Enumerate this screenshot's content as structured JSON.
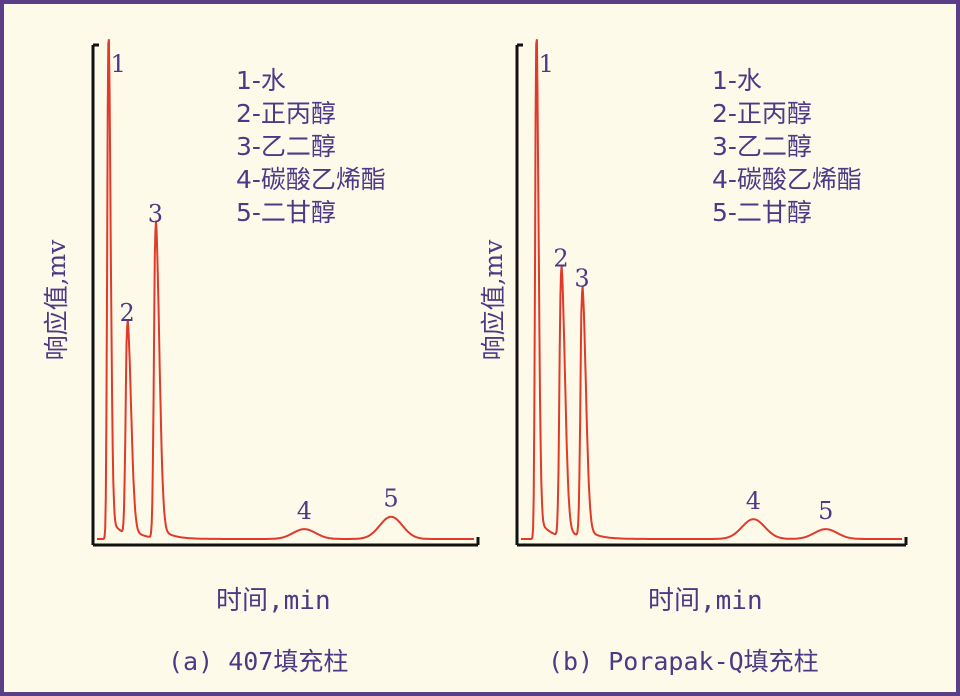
{
  "chart_data": [
    {
      "type": "line",
      "caption": "(a) 407填充柱",
      "xlabel": "时间,min",
      "ylabel": "响应值,mv",
      "legend": [
        "1-水",
        "2-正丙醇",
        "3-乙二醇",
        "4-碳酸乙烯酯",
        "5-二甘醇"
      ],
      "peaks": [
        {
          "label": "1",
          "x": 0.03,
          "height": 1.0
        },
        {
          "label": "2",
          "x": 0.08,
          "height": 0.42
        },
        {
          "label": "3",
          "x": 0.155,
          "height": 0.62
        },
        {
          "label": "4",
          "x": 0.55,
          "height": 0.02
        },
        {
          "label": "5",
          "x": 0.78,
          "height": 0.045
        }
      ],
      "color": "#e03a2a"
    },
    {
      "type": "line",
      "caption": "(b) Porapak-Q填充柱",
      "xlabel": "时间,min",
      "ylabel": "响应值,mv",
      "legend": [
        "1-水",
        "2-正丙醇",
        "3-乙二醇",
        "4-碳酸乙烯酯",
        "5-二甘醇"
      ],
      "peaks": [
        {
          "label": "1",
          "x": 0.04,
          "height": 1.0
        },
        {
          "label": "2",
          "x": 0.105,
          "height": 0.53
        },
        {
          "label": "3",
          "x": 0.16,
          "height": 0.49
        },
        {
          "label": "4",
          "x": 0.61,
          "height": 0.04
        },
        {
          "label": "5",
          "x": 0.8,
          "height": 0.02
        }
      ],
      "color": "#e03a2a"
    }
  ]
}
